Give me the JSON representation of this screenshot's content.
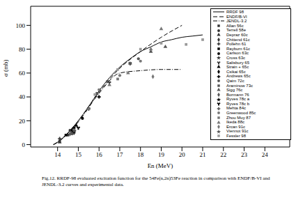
{
  "chart_data": {
    "type": "line",
    "caption": "Fig.12.  RRDF-98 evaluated excitation function for the 54Fe(n,2n)53Fe reaction in comparison with ENDF/B-VI and JENDL-3.2 curves and experimental data.",
    "x_label": "En  (MeV)",
    "y_label": "σ (mb)",
    "xlim": [
      12.7,
      25.2
    ],
    "xticks": [
      14,
      15,
      16,
      17,
      18,
      19,
      20,
      21,
      22,
      23,
      24
    ],
    "ylim": [
      -2,
      116
    ],
    "yticks": [
      0,
      20,
      40,
      60,
      80,
      100
    ],
    "grid": false,
    "legend": "upper right",
    "series": [
      {
        "name": "RRDF 98",
        "type": "line",
        "line_style": "solid",
        "color": "#000000",
        "x": [
          13.8,
          14,
          14.5,
          15,
          15.5,
          16,
          16.5,
          17,
          17.5,
          18,
          18.5,
          19,
          19.5,
          20,
          20.5,
          21
        ],
        "values": [
          0,
          2,
          10,
          20,
          32,
          45,
          56,
          65,
          72,
          78,
          82,
          86,
          88,
          90,
          91,
          92
        ]
      },
      {
        "name": "ENDF/B-VI",
        "type": "line",
        "line_style": "dashed",
        "color": "#000000",
        "x": [
          13.8,
          14,
          15,
          16,
          17,
          18,
          19,
          20
        ],
        "values": [
          0,
          2,
          20,
          44,
          64,
          78,
          90,
          100
        ]
      },
      {
        "name": "JENDL-3.2",
        "type": "line",
        "line_style": "dashdot",
        "color": "#000000",
        "x": [
          13.8,
          14,
          15,
          16,
          17,
          18,
          19,
          20
        ],
        "values": [
          0,
          2,
          19,
          43,
          60,
          62,
          63,
          63
        ]
      },
      {
        "name": "Allan 56c",
        "type": "scatter",
        "marker": "square",
        "color": "#333333",
        "x": [
          14.1,
          14.5
        ],
        "values": [
          3,
          8
        ]
      },
      {
        "name": "Terrell 58e",
        "type": "scatter",
        "marker": "circle",
        "color": "#333333",
        "x": [
          14.6
        ],
        "values": [
          12
        ]
      },
      {
        "name": "Depraz 60c",
        "type": "scatter",
        "marker": "triangle",
        "color": "#333333",
        "x": [
          14.1
        ],
        "values": [
          2
        ]
      },
      {
        "name": "Chittend 61c",
        "type": "scatter",
        "marker": "diamond",
        "color": "#333333",
        "x": [
          14.8
        ],
        "values": [
          10
        ]
      },
      {
        "name": "Pollehn 61",
        "type": "scatter",
        "marker": "cross",
        "color": "#333333",
        "x": [
          14.1
        ],
        "values": [
          5
        ]
      },
      {
        "name": "Rayburn 61c",
        "type": "scatter",
        "marker": "square",
        "color": "#000000",
        "x": [
          14.4
        ],
        "values": [
          8
        ]
      },
      {
        "name": "Carlson 63c",
        "type": "scatter",
        "marker": "circle",
        "color": "#000000",
        "x": [
          14.8,
          15.2
        ],
        "values": [
          14,
          22
        ]
      },
      {
        "name": "Cross 63c",
        "type": "scatter",
        "marker": "star",
        "color": "#333333",
        "x": [
          14.7
        ],
        "values": [
          10
        ]
      },
      {
        "name": "Salisbury 65",
        "type": "scatter",
        "marker": "wye",
        "color": "#333333",
        "x": [
          15.5,
          16.5,
          17.5
        ],
        "values": [
          30,
          52,
          68
        ]
      },
      {
        "name": "Strain + 65c",
        "type": "scatter",
        "marker": "triangle",
        "color": "#000000",
        "x": [
          14.9
        ],
        "values": [
          16
        ]
      },
      {
        "name": "Csikai 65c",
        "type": "scatter",
        "marker": "diamond",
        "color": "#000000",
        "x": [
          14.7
        ],
        "values": [
          12
        ]
      },
      {
        "name": "Andrews 65c",
        "type": "scatter",
        "marker": "cross",
        "color": "#000000",
        "x": [
          16.0
        ],
        "values": [
          40
        ]
      },
      {
        "name": "Qaim 72c",
        "type": "scatter",
        "marker": "circle",
        "color": "#555555",
        "x": [
          14.7,
          16.4,
          17.9
        ],
        "values": [
          9,
          53,
          72
        ]
      },
      {
        "name": "Araminow 73c",
        "type": "scatter",
        "marker": "square",
        "color": "#555555",
        "x": [
          15.9
        ],
        "values": [
          43
        ]
      },
      {
        "name": "Sigg 76c",
        "type": "scatter",
        "marker": "triangle",
        "color": "#555555",
        "x": [
          17.5,
          18.5,
          19.2
        ],
        "values": [
          68,
          78,
          82
        ]
      },
      {
        "name": "Bormann 76",
        "type": "scatter",
        "marker": "diamond",
        "color": "#555555",
        "x": [
          14.6
        ],
        "values": [
          9
        ]
      },
      {
        "name": "Ryves 78c a",
        "type": "scatter",
        "marker": "star",
        "color": "#000000",
        "x": [
          14.8
        ],
        "values": [
          11
        ]
      },
      {
        "name": "Ryves 78c b",
        "type": "scatter",
        "marker": "wye",
        "color": "#000000",
        "x": [
          15.0
        ],
        "values": [
          14
        ]
      },
      {
        "name": "Mehta 84c",
        "type": "scatter",
        "marker": "cross",
        "color": "#555555",
        "x": [
          14.8
        ],
        "values": [
          12
        ]
      },
      {
        "name": "Greenwood 85c",
        "type": "scatter",
        "marker": "circle",
        "color": "#777777",
        "x": [
          16.0,
          17.0,
          18.0
        ],
        "values": [
          46,
          58,
          70
        ]
      },
      {
        "name": "Zhou Muy 87",
        "type": "scatter",
        "marker": "square",
        "color": "#777777",
        "x": [
          16.9
        ],
        "values": [
          55
        ]
      },
      {
        "name": "Ikeda 88c",
        "type": "scatter",
        "marker": "triangle",
        "color": "#777777",
        "x": [
          15.5,
          16.5,
          17.4,
          18.5,
          19.0
        ],
        "values": [
          30,
          50,
          60,
          80,
          97
        ]
      },
      {
        "name": "Ercan 91c",
        "type": "scatter",
        "marker": "diamond",
        "color": "#777777",
        "x": [
          18.6
        ],
        "values": [
          57
        ]
      },
      {
        "name": "Viennot 91c",
        "type": "scatter",
        "marker": "star",
        "color": "#555555",
        "x": [
          14.8
        ],
        "values": [
          12
        ]
      },
      {
        "name": "Fessler 98",
        "type": "scatter",
        "marker": "square",
        "color": "#999999",
        "x": [
          15.8,
          16.9,
          18.0,
          19.0,
          20.2,
          21.0
        ],
        "values": [
          42,
          63,
          80,
          85,
          84,
          88
        ]
      }
    ]
  }
}
